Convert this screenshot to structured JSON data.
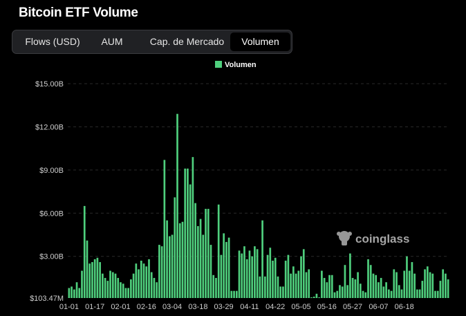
{
  "title": "Bitcoin ETF Volume",
  "tabs": [
    {
      "label": "Flows (USD)",
      "active": false
    },
    {
      "label": "AUM",
      "active": false
    },
    {
      "label": "Cap. de Mercado",
      "active": false
    },
    {
      "label": "Volumen",
      "active": true
    }
  ],
  "watermark": "coinglass",
  "colors": {
    "bar": "#4fcf7d",
    "background": "#000000",
    "grid": "#2a2a2a"
  },
  "chart_data": {
    "type": "bar",
    "legend": "Volumen",
    "legend_position": "top-center",
    "grid": true,
    "y_tick_labels": [
      "$103.47M",
      "$3.00B",
      "$6.00B",
      "$9.00B",
      "$12.00B",
      "$15.00B"
    ],
    "y_tick_values": [
      0.10347,
      3.0,
      6.0,
      9.0,
      12.0,
      15.0
    ],
    "ylim": [
      0.10347,
      15.0
    ],
    "y_unit": "USD billions",
    "x_tick_labels": [
      "01-01",
      "01-17",
      "02-01",
      "02-16",
      "03-04",
      "03-18",
      "03-29",
      "04-11",
      "04-22",
      "05-05",
      "05-16",
      "05-27",
      "06-07",
      "06-18"
    ],
    "x_tick_index": [
      0,
      10,
      20,
      30,
      40,
      50,
      60,
      70,
      80,
      90,
      100,
      110,
      120,
      130
    ],
    "series": [
      {
        "name": "Volumen",
        "values": [
          0.8,
          0.9,
          0.7,
          1.2,
          0.8,
          2.0,
          6.5,
          4.1,
          2.5,
          2.6,
          2.8,
          2.9,
          2.6,
          1.8,
          1.5,
          1.3,
          2.0,
          1.9,
          1.8,
          1.5,
          1.2,
          1.1,
          0.8,
          0.8,
          1.4,
          1.8,
          2.5,
          2.1,
          2.7,
          2.5,
          2.3,
          2.8,
          1.9,
          1.5,
          1.2,
          3.8,
          3.7,
          9.7,
          5.5,
          4.4,
          4.5,
          7.1,
          12.9,
          5.3,
          5.4,
          9.1,
          9.1,
          8.0,
          9.9,
          6.7,
          5.1,
          5.6,
          4.5,
          6.3,
          6.3,
          3.8,
          1.7,
          1.5,
          6.6,
          3.1,
          4.6,
          4.0,
          4.3,
          0.6,
          0.6,
          0.6,
          3.4,
          3.2,
          3.7,
          2.8,
          3.4,
          3.0,
          3.7,
          3.5,
          1.6,
          5.5,
          1.6,
          3.1,
          3.6,
          2.7,
          2.9,
          1.6,
          0.9,
          0.9,
          2.7,
          3.1,
          1.8,
          2.3,
          1.8,
          2.0,
          3.0,
          3.5,
          1.9,
          2.1,
          0.15,
          0.2,
          0.4,
          0.15,
          2.0,
          1.5,
          1.2,
          1.7,
          1.7,
          0.5,
          0.6,
          1.0,
          0.9,
          2.4,
          1.0,
          3.2,
          1.5,
          1.4,
          1.9,
          1.1,
          0.6,
          0.5,
          2.8,
          2.4,
          1.8,
          1.7,
          1.2,
          1.5,
          0.9,
          1.2,
          0.7,
          0.6,
          2.1,
          1.9,
          1.0,
          0.7,
          2.0,
          3.0,
          2.0,
          2.6,
          1.8,
          0.7,
          0.7,
          1.3,
          2.1,
          2.3,
          1.9,
          1.8,
          0.6,
          0.6,
          1.3,
          2.1,
          1.8,
          1.4
        ]
      }
    ]
  }
}
